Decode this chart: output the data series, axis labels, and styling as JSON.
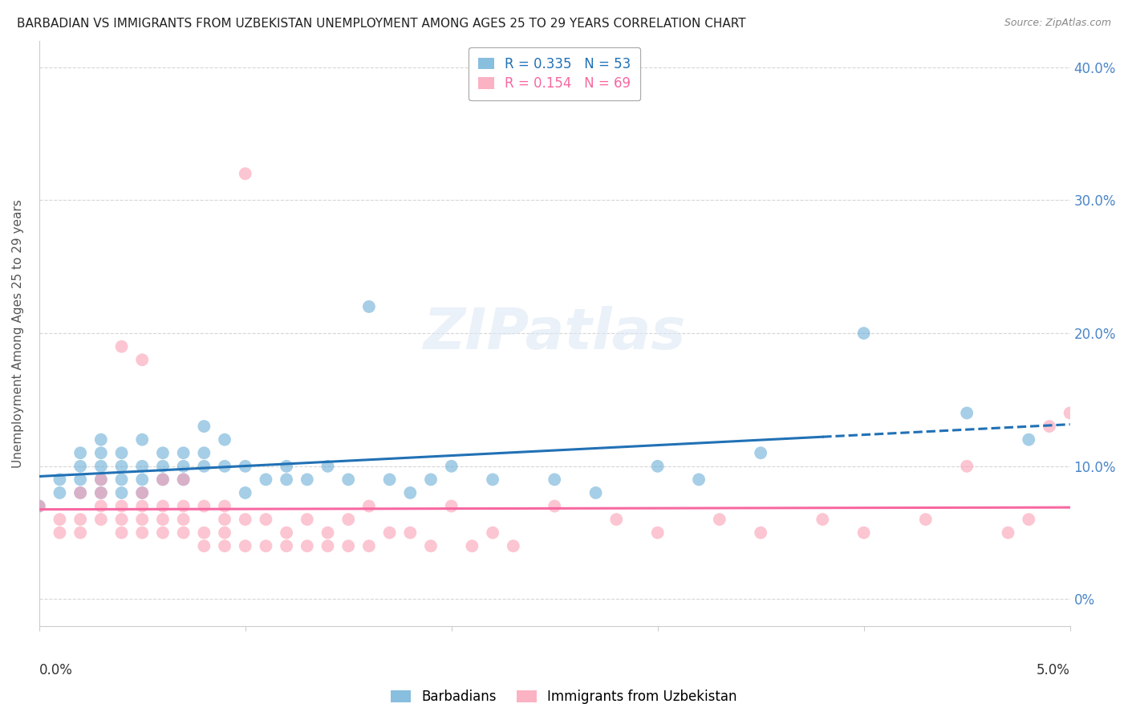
{
  "title": "BARBADIAN VS IMMIGRANTS FROM UZBEKISTAN UNEMPLOYMENT AMONG AGES 25 TO 29 YEARS CORRELATION CHART",
  "source": "Source: ZipAtlas.com",
  "ylabel": "Unemployment Among Ages 25 to 29 years",
  "legend_blue_R": "R = 0.335",
  "legend_blue_N": "N = 53",
  "legend_pink_R": "R = 0.154",
  "legend_pink_N": "N = 69",
  "legend_label_blue": "Barbadians",
  "legend_label_pink": "Immigrants from Uzbekistan",
  "blue_color": "#6baed6",
  "pink_color": "#fa9fb5",
  "blue_line_color": "#2171b5",
  "pink_line_color": "#f768a1",
  "background_color": "#ffffff",
  "grid_color": "#cccccc",
  "x_min": 0.0,
  "x_max": 0.05,
  "y_min": -0.02,
  "y_max": 0.42,
  "blue_N": 53,
  "pink_N": 69,
  "blue_scatter_x": [
    0.0,
    0.001,
    0.001,
    0.002,
    0.002,
    0.002,
    0.002,
    0.003,
    0.003,
    0.003,
    0.003,
    0.003,
    0.004,
    0.004,
    0.004,
    0.004,
    0.005,
    0.005,
    0.005,
    0.005,
    0.006,
    0.006,
    0.006,
    0.007,
    0.007,
    0.007,
    0.008,
    0.008,
    0.008,
    0.009,
    0.009,
    0.01,
    0.01,
    0.011,
    0.012,
    0.012,
    0.013,
    0.014,
    0.015,
    0.016,
    0.017,
    0.018,
    0.019,
    0.02,
    0.022,
    0.025,
    0.027,
    0.03,
    0.032,
    0.035,
    0.04,
    0.045,
    0.048
  ],
  "blue_scatter_y": [
    0.07,
    0.08,
    0.09,
    0.08,
    0.09,
    0.1,
    0.11,
    0.08,
    0.09,
    0.1,
    0.11,
    0.12,
    0.08,
    0.09,
    0.1,
    0.11,
    0.08,
    0.09,
    0.1,
    0.12,
    0.09,
    0.1,
    0.11,
    0.09,
    0.1,
    0.11,
    0.1,
    0.11,
    0.13,
    0.1,
    0.12,
    0.08,
    0.1,
    0.09,
    0.09,
    0.1,
    0.09,
    0.1,
    0.09,
    0.22,
    0.09,
    0.08,
    0.09,
    0.1,
    0.09,
    0.09,
    0.08,
    0.1,
    0.09,
    0.11,
    0.2,
    0.14,
    0.12
  ],
  "pink_scatter_x": [
    0.0,
    0.001,
    0.001,
    0.002,
    0.002,
    0.002,
    0.003,
    0.003,
    0.003,
    0.003,
    0.004,
    0.004,
    0.004,
    0.004,
    0.005,
    0.005,
    0.005,
    0.005,
    0.005,
    0.006,
    0.006,
    0.006,
    0.006,
    0.007,
    0.007,
    0.007,
    0.007,
    0.008,
    0.008,
    0.008,
    0.009,
    0.009,
    0.009,
    0.009,
    0.01,
    0.01,
    0.01,
    0.011,
    0.011,
    0.012,
    0.012,
    0.013,
    0.013,
    0.014,
    0.014,
    0.015,
    0.015,
    0.016,
    0.016,
    0.017,
    0.018,
    0.019,
    0.02,
    0.021,
    0.022,
    0.023,
    0.025,
    0.028,
    0.03,
    0.033,
    0.035,
    0.038,
    0.04,
    0.043,
    0.045,
    0.047,
    0.048,
    0.049,
    0.05
  ],
  "pink_scatter_y": [
    0.07,
    0.05,
    0.06,
    0.05,
    0.06,
    0.08,
    0.06,
    0.07,
    0.08,
    0.09,
    0.05,
    0.06,
    0.07,
    0.19,
    0.05,
    0.06,
    0.07,
    0.08,
    0.18,
    0.05,
    0.06,
    0.07,
    0.09,
    0.05,
    0.06,
    0.07,
    0.09,
    0.04,
    0.05,
    0.07,
    0.04,
    0.05,
    0.06,
    0.07,
    0.04,
    0.06,
    0.32,
    0.04,
    0.06,
    0.04,
    0.05,
    0.04,
    0.06,
    0.04,
    0.05,
    0.04,
    0.06,
    0.04,
    0.07,
    0.05,
    0.05,
    0.04,
    0.07,
    0.04,
    0.05,
    0.04,
    0.07,
    0.06,
    0.05,
    0.06,
    0.05,
    0.06,
    0.05,
    0.06,
    0.1,
    0.05,
    0.06,
    0.13,
    0.14
  ],
  "right_yticks": [
    0.0,
    0.1,
    0.2,
    0.3,
    0.4
  ],
  "right_yticklabels": [
    "0%",
    "10.0%",
    "20.0%",
    "30.0%",
    "40.0%"
  ],
  "blue_line_R_color": "#2171b5",
  "pink_line_R_color": "#f768a1",
  "blue_N_color": "#2171b5",
  "pink_N_color": "#f768a1"
}
